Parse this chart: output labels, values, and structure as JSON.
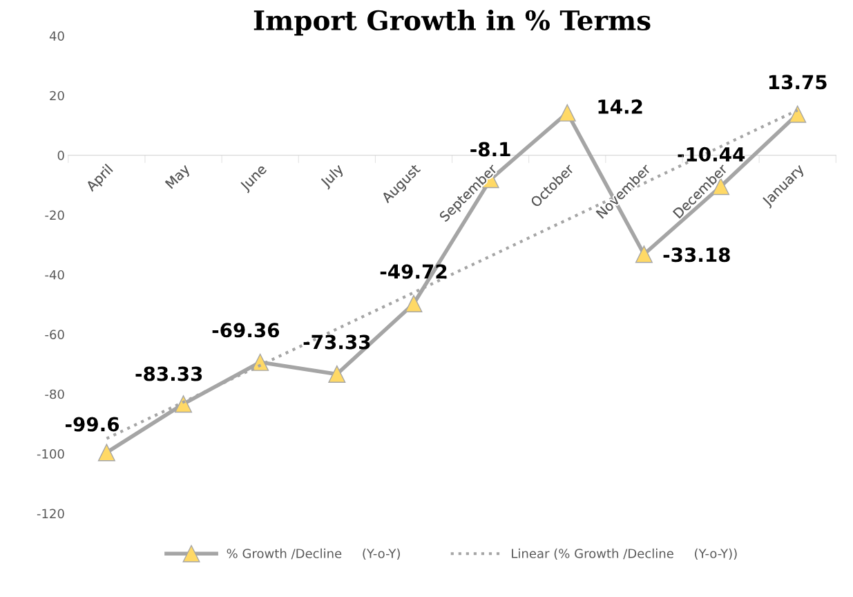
{
  "chart_data": {
    "type": "line",
    "title": "Import Growth in % Terms",
    "categories": [
      "April",
      "May",
      "June",
      "July",
      "August",
      "September",
      "October",
      "November",
      "December",
      "January"
    ],
    "series": [
      {
        "name": "% Growth /Decline     (Y-o-Y)",
        "color": "#a5a5a5",
        "marker": "triangle",
        "line_style": "solid",
        "values": [
          -99.6,
          -83.33,
          -69.36,
          -73.33,
          -49.72,
          -8.1,
          14.2,
          -33.18,
          -10.44,
          13.75
        ],
        "value_labels": [
          "-99.6",
          "-83.33",
          "-69.36",
          "-73.33",
          "-49.72",
          "-8.1",
          "14.2",
          "-33.18",
          "-10.44",
          "13.75"
        ]
      },
      {
        "name": "Linear (% Growth /Decline     (Y-o-Y))",
        "color": "#a5a5a5",
        "marker": "none",
        "line_style": "dotted",
        "values": [
          -94.9,
          -82.7,
          -70.4,
          -58.2,
          -46.0,
          -33.8,
          -21.6,
          -9.4,
          2.9,
          15.1
        ]
      }
    ],
    "ylim": [
      -120,
      40
    ],
    "yticks": [
      -120,
      -100,
      -80,
      -60,
      -40,
      -20,
      0,
      20,
      40
    ],
    "grid": false,
    "legend": "bottom"
  }
}
